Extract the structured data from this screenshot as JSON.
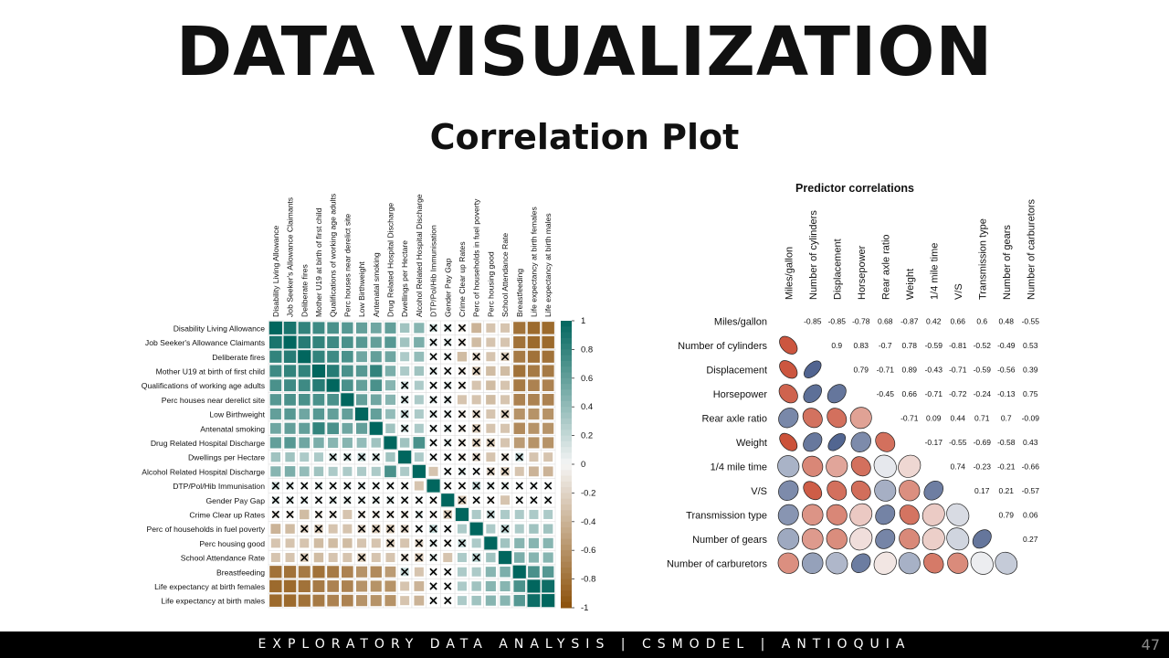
{
  "slide": {
    "title": "DATA VISUALIZATION",
    "subtitle": "Correlation Plot",
    "footer": "EXPLORATORY DATA ANALYSIS | CSMODEL | ANTIOQUIA",
    "page_number": "47"
  },
  "chart_data": [
    {
      "type": "heatmap",
      "title": "",
      "variables": [
        "Disability Living Allowance",
        "Job Seeker's Allowance Claimants",
        "Deliberate fires",
        "Mother U19 at birth of first child",
        "Qualifications of working age adults",
        "Perc houses near derelict site",
        "Low Birthweight",
        "Antenatal smoking",
        "Drug Related Hospital Discharge",
        "Dwellings per Hectare",
        "Alcohol Related Hospital Discharge",
        "DTP/Pol/Hib Immunisation",
        "Gender Pay Gap",
        "Crime Clear up Rates",
        "Perc of households in fuel poverty",
        "Perc housing good",
        "School Attendance Rate",
        "Breastfeeding",
        "Life expectancy at birth females",
        "Life expectancy at birth males"
      ],
      "matrix": [
        [
          1,
          0.9,
          0.8,
          0.75,
          0.7,
          0.65,
          0.6,
          0.55,
          0.6,
          0.35,
          0.45,
          0.15,
          0.1,
          -0.1,
          -0.4,
          -0.3,
          -0.3,
          -0.8,
          -0.85,
          -0.85
        ],
        [
          0.9,
          1,
          0.85,
          0.8,
          0.75,
          0.7,
          0.65,
          0.6,
          0.65,
          0.35,
          0.5,
          0.1,
          0.1,
          -0.1,
          -0.35,
          -0.3,
          -0.3,
          -0.8,
          -0.85,
          -0.85
        ],
        [
          0.8,
          0.85,
          1,
          0.8,
          0.75,
          0.7,
          0.55,
          0.6,
          0.55,
          0.3,
          0.4,
          0.05,
          0.08,
          -0.35,
          -0.2,
          -0.3,
          -0.25,
          -0.75,
          -0.8,
          -0.8
        ],
        [
          0.75,
          0.8,
          0.8,
          1,
          0.85,
          0.7,
          0.65,
          0.8,
          0.5,
          0.3,
          0.35,
          0.1,
          0.05,
          -0.1,
          -0.25,
          -0.35,
          -0.35,
          -0.8,
          -0.75,
          -0.75
        ],
        [
          0.7,
          0.75,
          0.75,
          0.85,
          1,
          0.7,
          0.6,
          0.7,
          0.45,
          0.15,
          0.3,
          0.05,
          0.1,
          -0.1,
          -0.3,
          -0.35,
          -0.3,
          -0.75,
          -0.7,
          -0.7
        ],
        [
          0.65,
          0.7,
          0.7,
          0.7,
          0.7,
          1,
          0.6,
          0.55,
          0.45,
          0.15,
          0.3,
          0.1,
          0.1,
          -0.3,
          -0.3,
          -0.35,
          -0.3,
          -0.7,
          -0.7,
          -0.7
        ],
        [
          0.6,
          0.65,
          0.55,
          0.65,
          0.6,
          0.6,
          1,
          0.6,
          0.4,
          0.2,
          0.3,
          0.1,
          0.08,
          -0.1,
          -0.2,
          -0.3,
          -0.25,
          -0.6,
          -0.6,
          -0.6
        ],
        [
          0.55,
          0.6,
          0.6,
          0.8,
          0.7,
          0.55,
          0.6,
          1,
          0.35,
          0.15,
          0.3,
          0.06,
          0.1,
          -0.1,
          -0.25,
          -0.3,
          -0.3,
          -0.65,
          -0.6,
          -0.6
        ],
        [
          0.6,
          0.65,
          0.55,
          0.5,
          0.45,
          0.45,
          0.4,
          0.35,
          1,
          0.35,
          0.7,
          0.05,
          0.1,
          -0.1,
          -0.25,
          -0.25,
          -0.3,
          -0.55,
          -0.6,
          -0.6
        ],
        [
          0.35,
          0.35,
          0.3,
          0.3,
          0.15,
          0.15,
          0.2,
          0.15,
          0.35,
          1,
          0.3,
          0.05,
          0.05,
          -0.1,
          -0.2,
          -0.3,
          -0.15,
          0.2,
          -0.3,
          -0.3
        ],
        [
          0.45,
          0.5,
          0.4,
          0.35,
          0.3,
          0.3,
          0.3,
          0.3,
          0.7,
          0.3,
          1,
          -0.3,
          0.05,
          0.1,
          0.05,
          -0.2,
          -0.25,
          -0.3,
          -0.4,
          -0.4
        ],
        [
          0.15,
          0.1,
          0.05,
          0.1,
          0.05,
          0.1,
          0.1,
          0.06,
          0.05,
          0.05,
          -0.3,
          1,
          -0.05,
          -0.05,
          0.2,
          0.1,
          0.1,
          0.05,
          0.05,
          0.05
        ],
        [
          0.1,
          0.1,
          0.08,
          0.05,
          0.1,
          0.1,
          0.08,
          0.1,
          0.1,
          0.05,
          0.05,
          -0.05,
          1,
          -0.25,
          0.05,
          -0.06,
          -0.3,
          0.05,
          0.05,
          0.05
        ],
        [
          -0.1,
          -0.1,
          -0.35,
          -0.1,
          -0.1,
          -0.3,
          -0.1,
          -0.1,
          -0.1,
          -0.1,
          0.1,
          -0.05,
          -0.25,
          1,
          0.3,
          0.2,
          0.3,
          0.3,
          0.3,
          0.3
        ],
        [
          -0.4,
          -0.35,
          -0.2,
          -0.25,
          -0.3,
          -0.3,
          -0.2,
          -0.25,
          -0.25,
          -0.2,
          0.05,
          0.2,
          0.05,
          0.3,
          1,
          0.3,
          0.25,
          0.3,
          0.35,
          0.35
        ],
        [
          -0.3,
          -0.3,
          -0.3,
          -0.35,
          -0.35,
          -0.35,
          -0.3,
          -0.3,
          -0.25,
          -0.3,
          -0.2,
          0.1,
          -0.06,
          0.2,
          0.3,
          1,
          0.35,
          0.45,
          0.45,
          0.45
        ],
        [
          -0.3,
          -0.3,
          -0.25,
          -0.35,
          -0.3,
          -0.3,
          -0.25,
          -0.3,
          -0.3,
          -0.15,
          -0.25,
          0.1,
          -0.3,
          0.3,
          0.25,
          0.35,
          1,
          0.5,
          0.45,
          0.45
        ],
        [
          -0.8,
          -0.8,
          -0.75,
          -0.8,
          -0.75,
          -0.7,
          -0.6,
          -0.65,
          -0.55,
          0.2,
          -0.3,
          0.05,
          0.05,
          0.3,
          0.3,
          0.45,
          0.5,
          1,
          0.7,
          0.65
        ],
        [
          -0.85,
          -0.85,
          -0.8,
          -0.75,
          -0.7,
          -0.7,
          -0.6,
          -0.6,
          -0.6,
          -0.3,
          -0.4,
          0.05,
          0.05,
          0.3,
          0.35,
          0.45,
          0.45,
          0.7,
          1,
          0.95
        ],
        [
          -0.85,
          -0.85,
          -0.8,
          -0.75,
          -0.7,
          -0.7,
          -0.6,
          -0.6,
          -0.6,
          -0.3,
          -0.4,
          0.05,
          0.05,
          0.3,
          0.35,
          0.45,
          0.45,
          0.65,
          0.95,
          1
        ]
      ],
      "colorbar_ticks": [
        "1",
        "0.8",
        "0.6",
        "0.4",
        "0.2",
        "0",
        "-0.2",
        "-0.4",
        "-0.6",
        "-0.8",
        "-1"
      ],
      "colors": {
        "positive": "#01665e",
        "mid": "#f5f5f5",
        "negative": "#8c510a",
        "insignificant_mark": "#000000"
      }
    },
    {
      "type": "heatmap",
      "title": "Predictor correlations",
      "variables": [
        "Miles/gallon",
        "Number of cylinders",
        "Displacement",
        "Horsepower",
        "Rear axle ratio",
        "Weight",
        "1/4 mile time",
        "V/S",
        "Transmission type",
        "Number of gears",
        "Number of carburetors"
      ],
      "upper_labels": [
        [
          "",
          "-0.85",
          "-0.85",
          "-0.78",
          "0.68",
          "-0.87",
          "0.42",
          "0.66",
          "0.6",
          "0.48",
          "-0.55"
        ],
        [
          "",
          "",
          "0.9",
          "0.83",
          "-0.7",
          "0.78",
          "-0.59",
          "-0.81",
          "-0.52",
          "-0.49",
          "0.53"
        ],
        [
          "",
          "",
          "",
          "0.79",
          "-0.71",
          "0.89",
          "-0.43",
          "-0.71",
          "-0.59",
          "-0.56",
          "0.39"
        ],
        [
          "",
          "",
          "",
          "",
          "-0.45",
          "0.66",
          "-0.71",
          "-0.72",
          "-0.24",
          "-0.13",
          "0.75"
        ],
        [
          "",
          "",
          "",
          "",
          "",
          "-0.71",
          "0.09",
          "0.44",
          "0.71",
          "0.7",
          "-0.09"
        ],
        [
          "",
          "",
          "",
          "",
          "",
          "",
          "-0.17",
          "-0.55",
          "-0.69",
          "-0.58",
          "0.43"
        ],
        [
          "",
          "",
          "",
          "",
          "",
          "",
          "",
          "0.74",
          "-0.23",
          "-0.21",
          "-0.66"
        ],
        [
          "",
          "",
          "",
          "",
          "",
          "",
          "",
          "",
          "0.17",
          "0.21",
          "-0.57"
        ],
        [
          "",
          "",
          "",
          "",
          "",
          "",
          "",
          "",
          "",
          "0.79",
          "0.06"
        ],
        [
          "",
          "",
          "",
          "",
          "",
          "",
          "",
          "",
          "",
          "",
          "0.27"
        ],
        [
          "",
          "",
          "",
          "",
          "",
          "",
          "",
          "",
          "",
          "",
          ""
        ]
      ],
      "colors": {
        "positive": "#2166ac",
        "negative": "#b2182b",
        "mid": "#f7f7f7",
        "ellipse_positive": "#3e5484",
        "ellipse_negative": "#c4391e"
      }
    }
  ]
}
